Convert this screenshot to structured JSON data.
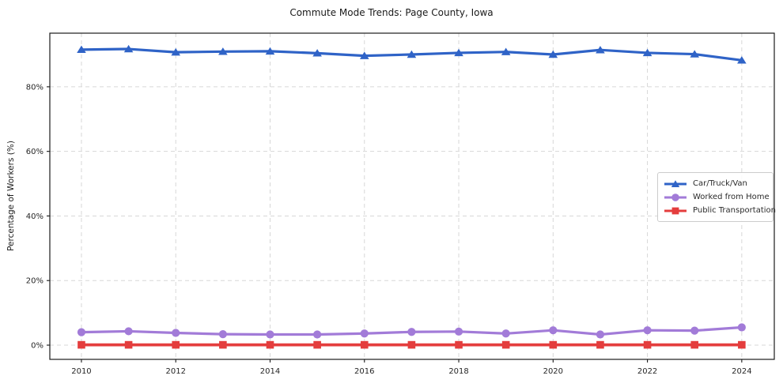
{
  "title": "Commute Mode Trends: Page County, Iowa",
  "chart_data": {
    "type": "line",
    "title": "Commute Mode Trends: Page County, Iowa",
    "xlabel": "",
    "ylabel": "Percentage of Workers (%)",
    "x": [
      2010,
      2011,
      2012,
      2013,
      2014,
      2015,
      2016,
      2017,
      2018,
      2019,
      2020,
      2021,
      2022,
      2023,
      2024
    ],
    "series": [
      {
        "name": "Car/Truck/Van",
        "color": "#2f63c7",
        "marker": "triangle",
        "line_width": 3.2,
        "values": [
          91.5,
          91.7,
          90.7,
          90.9,
          91.0,
          90.4,
          89.6,
          90.0,
          90.5,
          90.8,
          90.0,
          91.4,
          90.5,
          90.1,
          88.2
        ]
      },
      {
        "name": "Worked from Home",
        "color": "#a27bd8",
        "marker": "circle",
        "line_width": 3.2,
        "values": [
          4.0,
          4.3,
          3.8,
          3.4,
          3.3,
          3.3,
          3.6,
          4.1,
          4.2,
          3.6,
          4.6,
          3.3,
          4.6,
          4.5,
          5.5
        ]
      },
      {
        "name": "Public Transportation",
        "color": "#e43d3d",
        "marker": "square",
        "line_width": 3.8,
        "values": [
          0.1,
          0.1,
          0.1,
          0.1,
          0.1,
          0.1,
          0.1,
          0.1,
          0.1,
          0.1,
          0.1,
          0.1,
          0.1,
          0.1,
          0.1
        ]
      }
    ],
    "xticks": [
      2010,
      2012,
      2014,
      2016,
      2018,
      2020,
      2022,
      2024
    ],
    "xtick_labels": [
      "2010",
      "2012",
      "2014",
      "2016",
      "2018",
      "2020",
      "2022",
      "2024"
    ],
    "yticks": [
      0,
      20,
      40,
      60,
      80
    ],
    "ytick_labels": [
      "0%",
      "20%",
      "40%",
      "60%",
      "80%"
    ],
    "xlim": [
      2009.33,
      2024.69
    ],
    "ylim": [
      -4.4,
      96.6
    ],
    "grid": true,
    "grid_style": "dashed",
    "grid_color": "#d7d7d7",
    "legend_position": "center-right"
  }
}
